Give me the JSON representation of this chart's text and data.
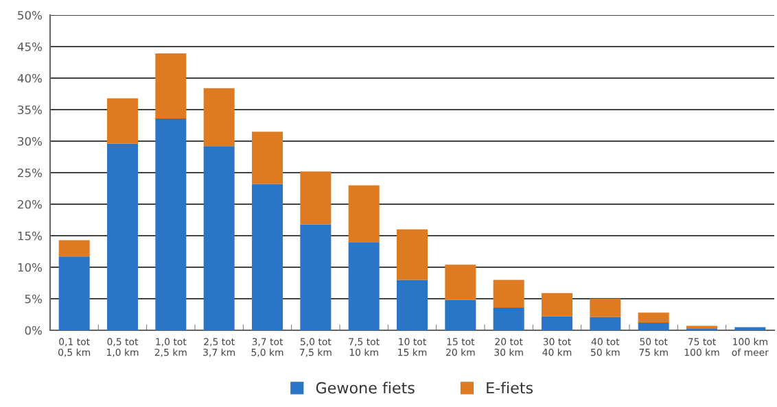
{
  "chart_data": {
    "type": "bar",
    "stacked": true,
    "categories": [
      "0,1 tot\n0,5 km",
      "0,5 tot\n1,0 km",
      "1,0 tot\n2,5 km",
      "2,5 tot\n3,7 km",
      "3,7 tot\n5,0 km",
      "5,0 tot\n7,5 km",
      "7,5 tot\n10 km",
      "10 tot\n15 km",
      "15 tot\n20 km",
      "20 tot\n30 km",
      "30 tot\n40 km",
      "40 tot\n50 km",
      "50 tot\n75 km",
      "75 tot\n100 km",
      "100 km\nof meer"
    ],
    "series": [
      {
        "name": "Gewone fiets",
        "color": "#2a75c6",
        "values": [
          11.7,
          29.6,
          33.6,
          29.2,
          23.2,
          16.8,
          14.0,
          8.0,
          4.8,
          3.6,
          2.2,
          2.1,
          1.2,
          0.3,
          0.5
        ]
      },
      {
        "name": "E-fiets",
        "color": "#dd7a22",
        "values": [
          2.6,
          7.2,
          10.3,
          9.2,
          8.3,
          8.4,
          9.0,
          8.0,
          5.6,
          4.4,
          3.7,
          2.9,
          1.6,
          0.4,
          0
        ]
      }
    ],
    "ylim": [
      0,
      50
    ],
    "yticks": [
      {
        "value": 0,
        "label": "0%"
      },
      {
        "value": 5,
        "label": "5%"
      },
      {
        "value": 10,
        "label": "10%"
      },
      {
        "value": 15,
        "label": "15%"
      },
      {
        "value": 20,
        "label": "20%"
      },
      {
        "value": 25,
        "label": "25%"
      },
      {
        "value": 30,
        "label": "30%"
      },
      {
        "value": 35,
        "label": "35%"
      },
      {
        "value": 40,
        "label": "40%"
      },
      {
        "value": 45,
        "label": "45%"
      },
      {
        "value": 50,
        "label": "50%"
      }
    ],
    "grid": "y",
    "legend": "bottom"
  }
}
